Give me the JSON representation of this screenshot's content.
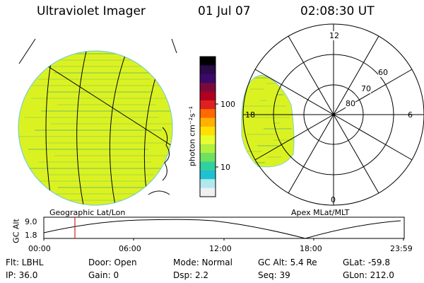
{
  "header": {
    "instrument": "Ultraviolet Imager",
    "date": "01 Jul 07",
    "time": "02:08:30 UT"
  },
  "colorbar": {
    "unit_label": "photon cm⁻²s⁻¹",
    "tick_labels": [
      "100",
      "10"
    ],
    "colors_top_to_bottom": [
      "#000000",
      "#2a0a4a",
      "#3a0a6a",
      "#7a0a3a",
      "#b00020",
      "#e02020",
      "#ff6a00",
      "#ffb000",
      "#ffe000",
      "#e8ff30",
      "#b0f040",
      "#70e060",
      "#30d0a0",
      "#20c0d0",
      "#b0e8f0",
      "#f0f0f0"
    ]
  },
  "geographic_panel": {
    "label": "Geographic Lat/Lon",
    "fill_color": "#dbf222",
    "stripe_color": "#9fd448"
  },
  "polar_panel": {
    "label": "Apex MLat/MLT",
    "mlt_labels": {
      "top": "12",
      "left": "18",
      "right": "6",
      "bottom": "0"
    },
    "mlat_labels": [
      "60",
      "70",
      "80"
    ]
  },
  "altitude_plot": {
    "y_label": "GC Alt",
    "y_ticks": [
      "9.0",
      "1.8"
    ],
    "x_ticks": [
      "00:00",
      "06:00",
      "12:00",
      "18:00",
      "23:59"
    ],
    "marker_color": "#cc2222"
  },
  "info": {
    "flt": "Flt: LBHL",
    "door": "Door: Open",
    "mode": "Mode: Normal",
    "gcalt": "GC Alt: 5.4 Re",
    "glat": "GLat: -59.8",
    "ip": "IP: 36.0",
    "gain": "Gain:  0",
    "dsp": "Dsp:    2.2",
    "seq": "Seq: 39",
    "glon": "GLon: 212.0"
  }
}
